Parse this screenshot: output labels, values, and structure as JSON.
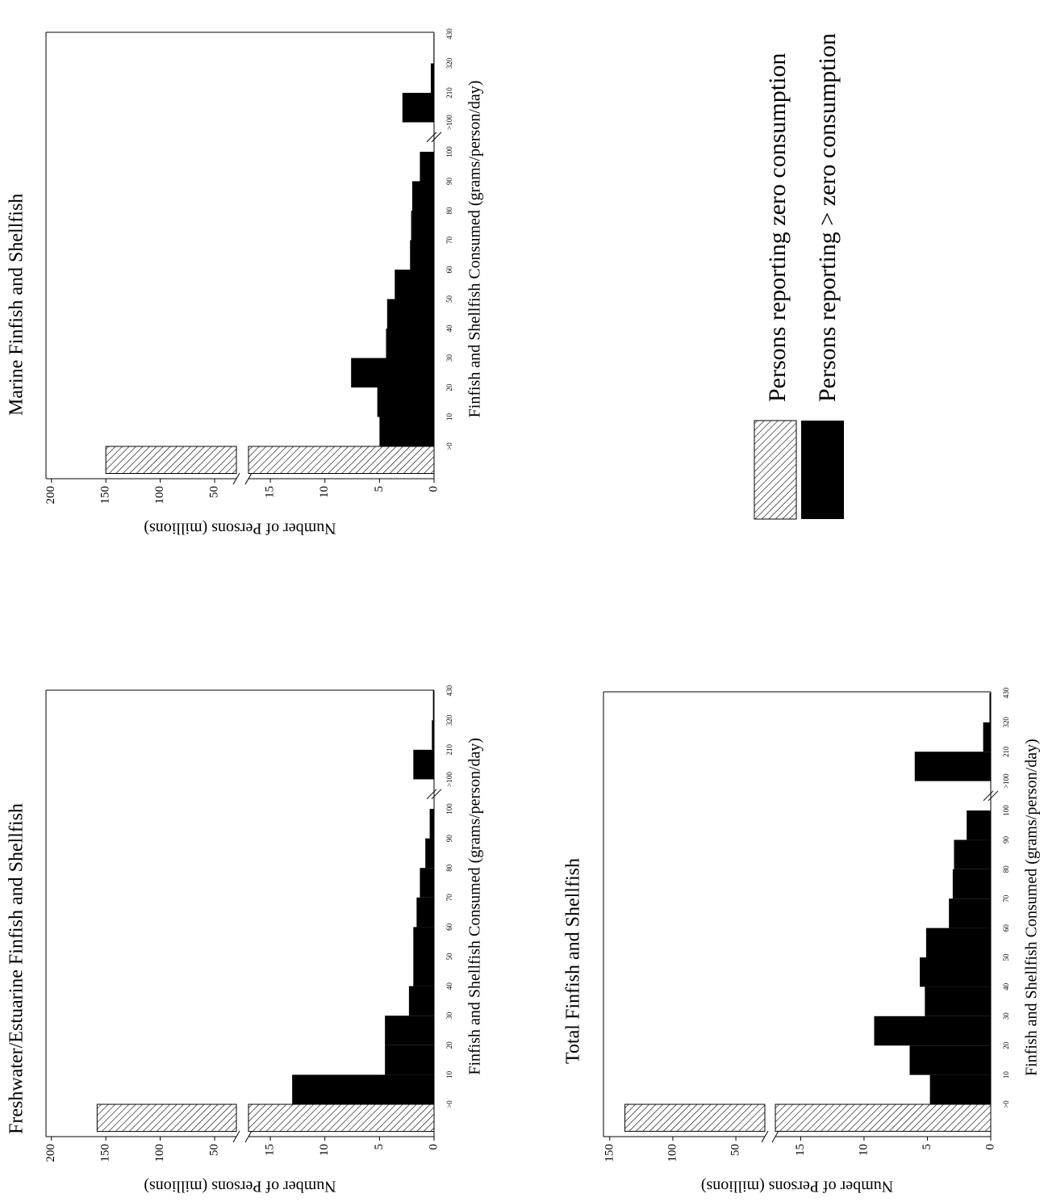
{
  "chart_data": [
    {
      "type": "histogram",
      "title": "Freshwater/Estuarine Finfish and Shellfish",
      "xlabel": "Finfish and Shellfish Consumed (grams/person/day)",
      "ylabel": "Number of Persons (millions)",
      "bins": [
        ">0",
        "10",
        "20",
        "30",
        "40",
        "50",
        "60",
        "70",
        "80",
        "90",
        "100",
        ">100",
        "210",
        "320",
        "430"
      ],
      "zero_value": 158,
      "values": [
        13.0,
        4.5,
        4.5,
        2.3,
        1.9,
        1.9,
        1.6,
        1.3,
        0.8,
        0.4,
        null,
        1.9,
        0.2,
        0.1
      ],
      "color": "#000000",
      "ylim_lower": [
        0,
        17
      ],
      "yticks_lower": [
        0,
        5,
        10,
        15
      ],
      "ylim_upper": [
        30,
        205
      ],
      "yticks_upper": [
        50,
        100,
        150,
        200
      ]
    },
    {
      "type": "histogram",
      "title": "Marine Finfish and Shellfish",
      "xlabel": "Finfish and Shellfish Consumed (grams/person/day)",
      "ylabel": "Number of Persons (millions)",
      "bins": [
        ">0",
        "10",
        "20",
        "30",
        "40",
        "50",
        "60",
        "70",
        "80",
        "90",
        "100",
        ">100",
        "210",
        "320",
        "430"
      ],
      "zero_value": 150,
      "values": [
        5.0,
        5.2,
        7.6,
        4.4,
        4.3,
        3.6,
        2.2,
        2.1,
        2.0,
        1.3,
        null,
        2.9,
        0.3,
        0.05
      ],
      "color": "#000000",
      "ylim_lower": [
        0,
        17
      ],
      "yticks_lower": [
        0,
        5,
        10,
        15
      ],
      "ylim_upper": [
        30,
        205
      ],
      "yticks_upper": [
        50,
        100,
        150,
        200
      ]
    },
    {
      "type": "histogram",
      "title": "Total Finfish and Shellfish",
      "xlabel": "Finfish and Shellfish Consumed (grams/person/day)",
      "ylabel": "Number of Persons (millions)",
      "bins": [
        ">0",
        "10",
        "20",
        "30",
        "40",
        "50",
        "60",
        "70",
        "80",
        "90",
        "100",
        ">100",
        "210",
        "320",
        "430"
      ],
      "zero_value": 138,
      "values": [
        4.8,
        6.4,
        9.2,
        5.2,
        5.6,
        5.1,
        3.3,
        3.0,
        2.9,
        1.9,
        null,
        6.0,
        0.6,
        0.1
      ],
      "color": "#000000",
      "ylim_lower": [
        0,
        17
      ],
      "yticks_lower": [
        0,
        5,
        10,
        15
      ],
      "ylim_upper": [
        27,
        155
      ],
      "yticks_upper": [
        50,
        100,
        150
      ]
    }
  ],
  "legend": {
    "zero": "Persons reporting zero consumption",
    "nonzero": "Persons reporting > zero consumption"
  }
}
